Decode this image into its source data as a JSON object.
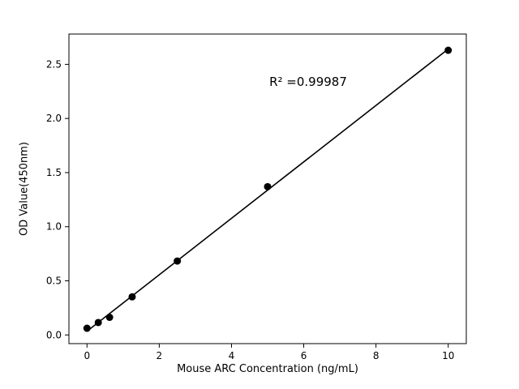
{
  "chart_data": {
    "type": "scatter",
    "title": "",
    "xlabel": "Mouse ARC Concentration (ng/mL)",
    "ylabel": "OD Value(450nm)",
    "annotation": "R² =0.99987",
    "x": [
      0,
      0.3125,
      0.625,
      1.25,
      2.5,
      5,
      10
    ],
    "y": [
      0.062,
      0.115,
      0.163,
      0.352,
      0.683,
      1.37,
      2.63
    ],
    "fit_line": "linear",
    "xlim": [
      -0.5,
      10.5
    ],
    "ylim": [
      -0.08,
      2.78
    ],
    "xticks": [
      0,
      2,
      4,
      6,
      8,
      10
    ],
    "xtick_labels": [
      "0",
      "2",
      "4",
      "6",
      "8",
      "10"
    ],
    "yticks": [
      0.0,
      0.5,
      1.0,
      1.5,
      2.0,
      2.5
    ],
    "ytick_labels": [
      "0.0",
      "0.5",
      "1.0",
      "1.5",
      "2.0",
      "2.5"
    ],
    "marker_color": "#000000",
    "line_color": "#000000",
    "frame_color": "#000000",
    "background": "#ffffff",
    "grid": false,
    "legend": "none"
  }
}
